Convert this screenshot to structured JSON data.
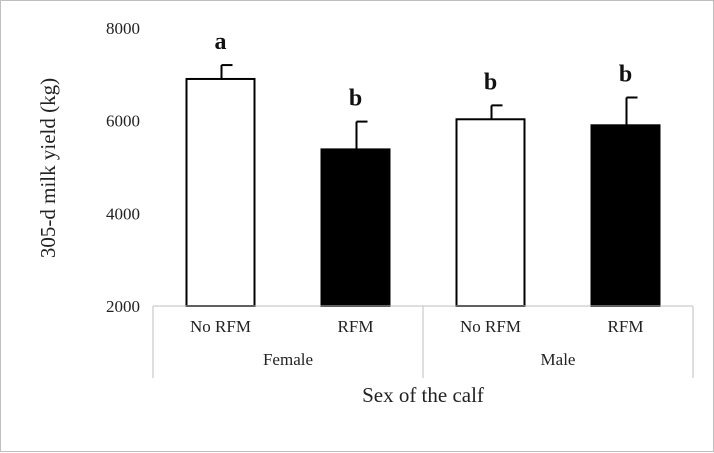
{
  "chart_data": {
    "type": "bar",
    "title": "",
    "ylabel": "305-d milk yield (kg)",
    "xlabel": "Sex of the calf",
    "ylim": [
      2000,
      8000
    ],
    "yticks": [
      "2000",
      "4000",
      "6000",
      "8000"
    ],
    "groups": [
      "Female",
      "Male"
    ],
    "categories": [
      "No RFM",
      "RFM",
      "No RFM",
      "RFM"
    ],
    "bars": [
      {
        "group": "Female",
        "category": "No RFM",
        "value": 6900,
        "error": 300,
        "fill": "#ffffff",
        "letter": "a"
      },
      {
        "group": "Female",
        "category": "RFM",
        "value": 5380,
        "error": 600,
        "fill": "#000000",
        "letter": "b"
      },
      {
        "group": "Male",
        "category": "No RFM",
        "value": 6030,
        "error": 300,
        "fill": "#ffffff",
        "letter": "b"
      },
      {
        "group": "Male",
        "category": "RFM",
        "value": 5900,
        "error": 600,
        "fill": "#000000",
        "letter": "b"
      }
    ],
    "grid": false,
    "legend": "none"
  }
}
